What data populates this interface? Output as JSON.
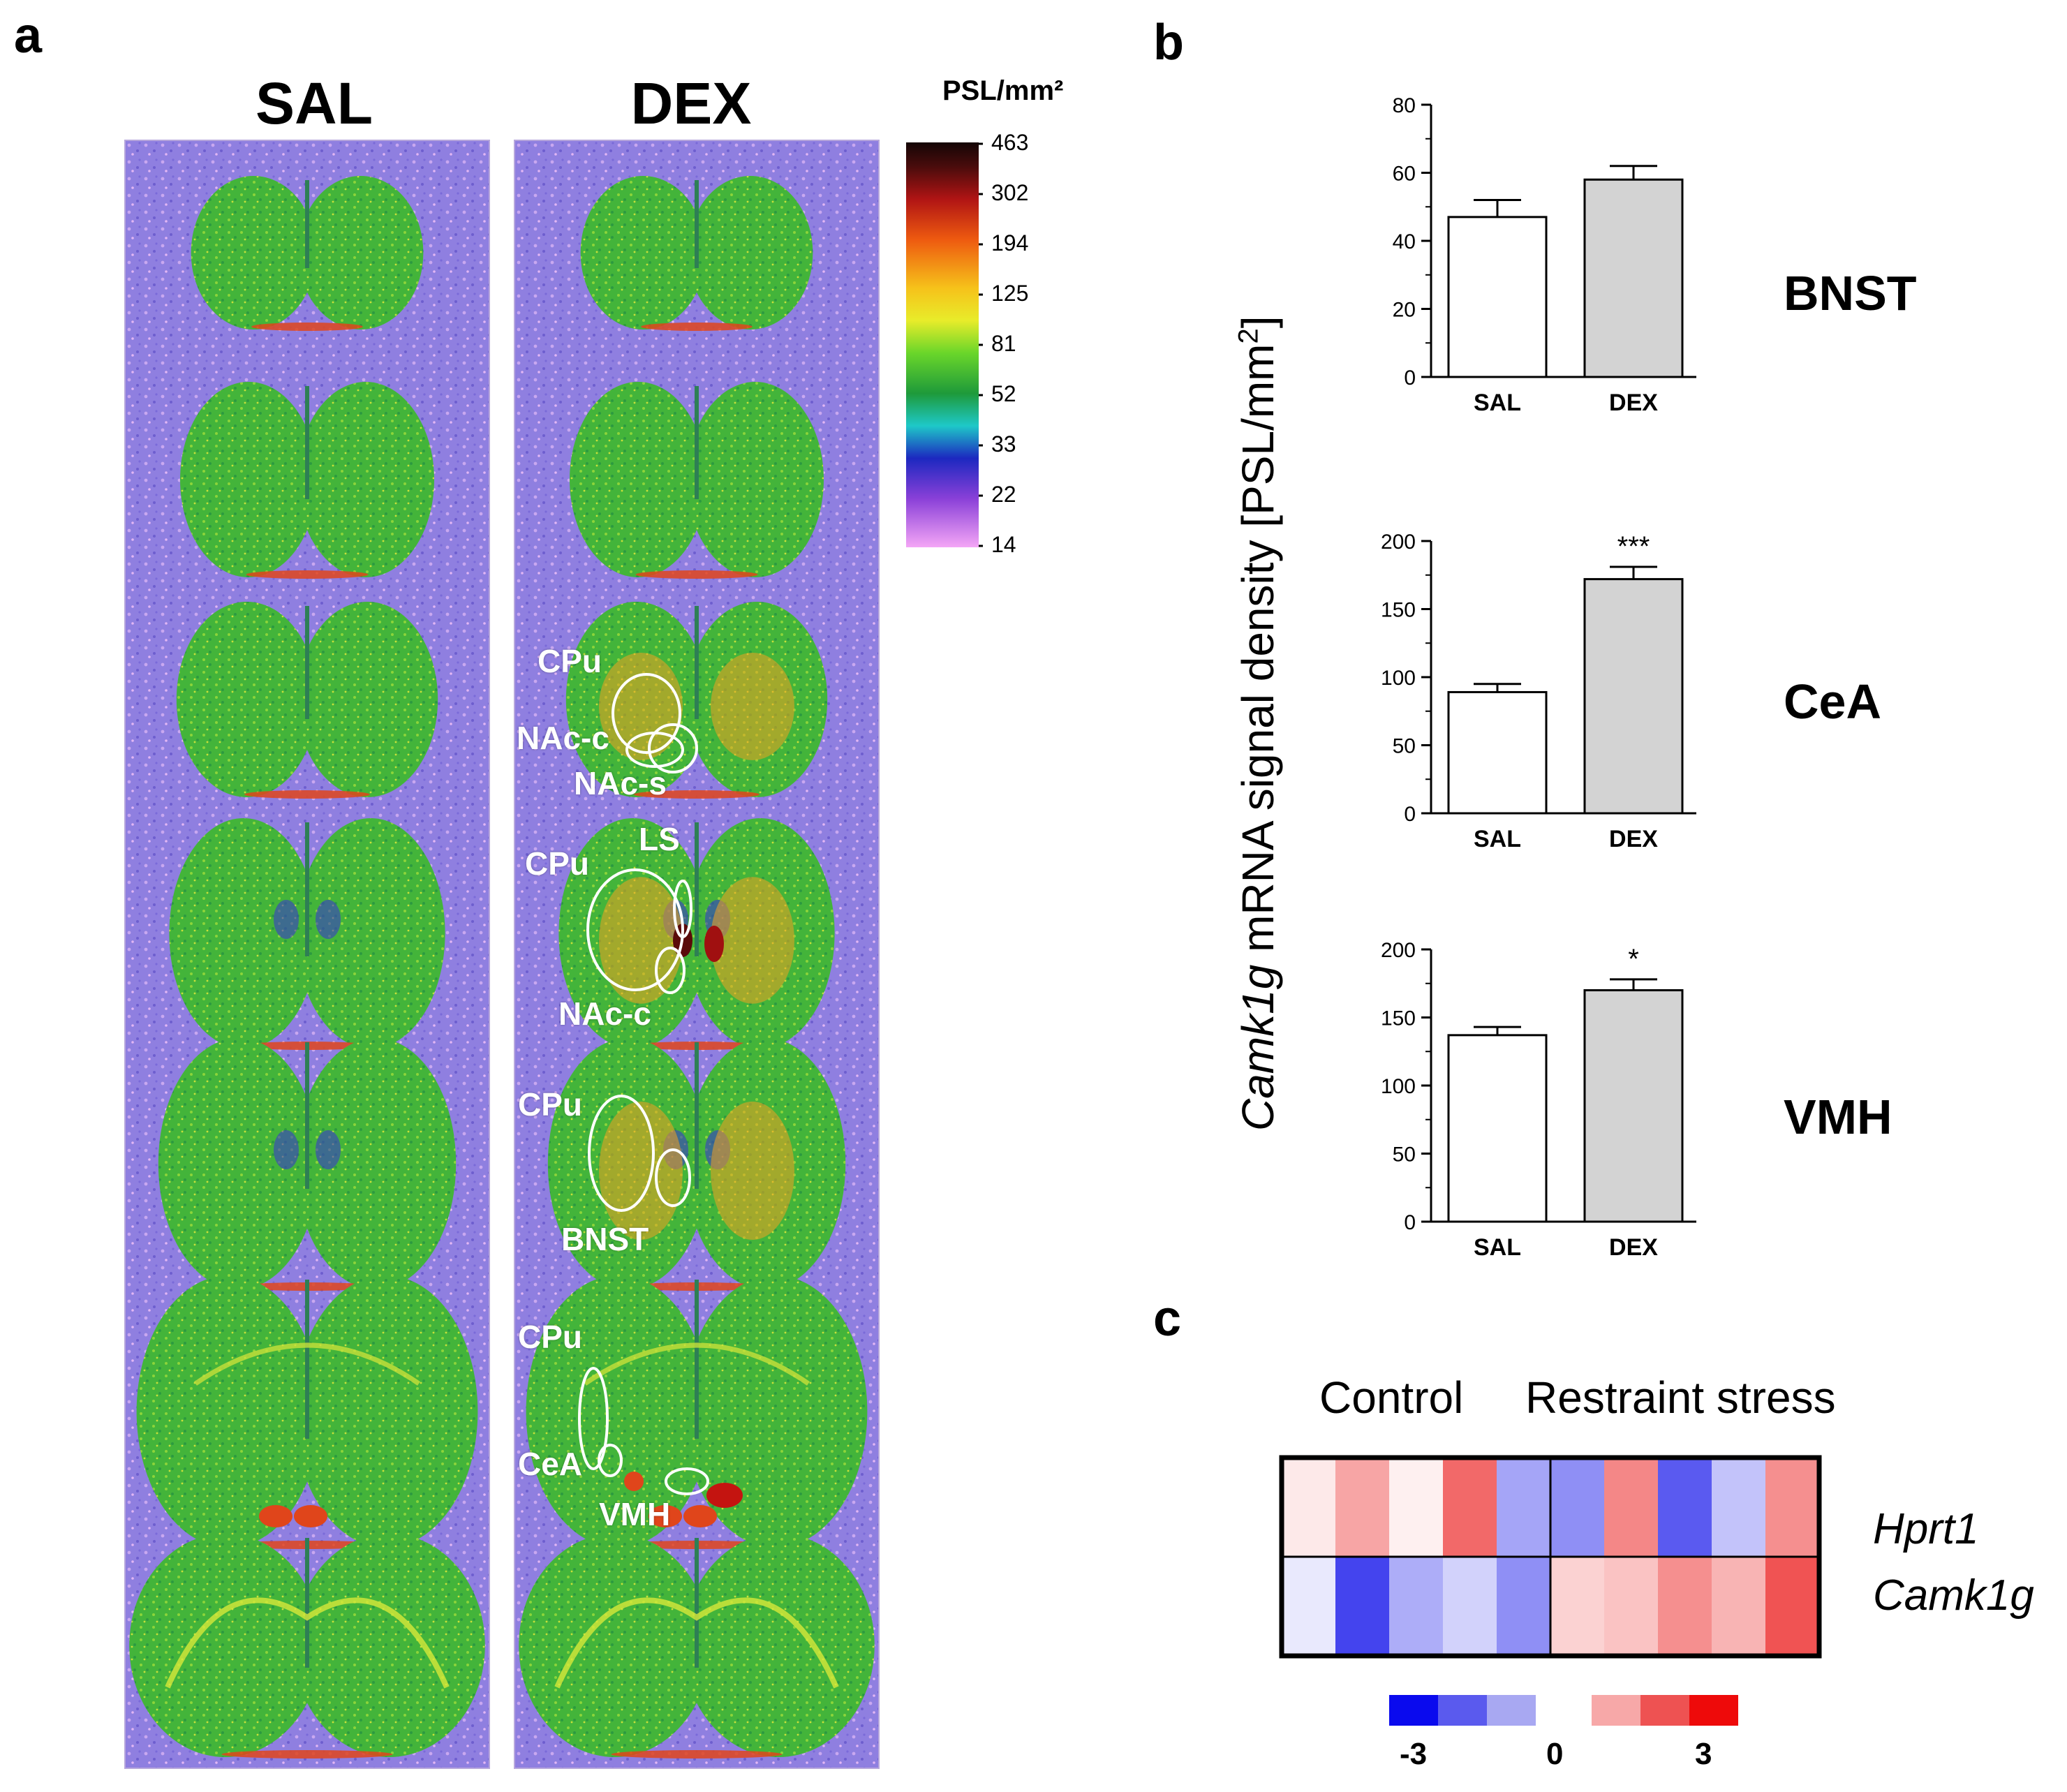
{
  "panel_a": {
    "letter": "a",
    "col_sal": "SAL",
    "col_dex": "DEX",
    "scale_title": "PSL/mm²",
    "scale_ticks": [
      "463",
      "302",
      "194",
      "125",
      "81",
      "52",
      "33",
      "22",
      "14"
    ],
    "labels": {
      "cpu1": "CPu",
      "nacc1": "NAc-c",
      "nacs": "NAc-s",
      "cpu2": "CPu",
      "ls": "LS",
      "nacc2": "NAc-c",
      "cpu3": "CPu",
      "bnst": "BNST",
      "cpu4": "CPu",
      "cea": "CeA",
      "vmh": "VMH"
    },
    "colors": {
      "background": "#8f7fe0",
      "tissue": "#43b43a",
      "hot": "#e0451b"
    }
  },
  "panel_b": {
    "letter": "b",
    "ylabel_italic": "Camk1g",
    "ylabel_rest": " mRNA signal density [PSL/mm",
    "ylabel_sup": "2",
    "ylabel_end": "]"
  },
  "chart_data": [
    {
      "type": "bar",
      "region": "BNST",
      "categories": [
        "SAL",
        "DEX"
      ],
      "values": [
        47,
        58
      ],
      "errors": [
        5,
        4
      ],
      "ylim": [
        0,
        80
      ],
      "yticks": [
        "0",
        "20",
        "40",
        "60",
        "80"
      ],
      "significance": [
        "",
        ""
      ],
      "colors": [
        "#ffffff",
        "#d3d3d3"
      ]
    },
    {
      "type": "bar",
      "region": "CeA",
      "categories": [
        "SAL",
        "DEX"
      ],
      "values": [
        89,
        172
      ],
      "errors": [
        6,
        9
      ],
      "ylim": [
        0,
        200
      ],
      "yticks": [
        "0",
        "50",
        "100",
        "150",
        "200"
      ],
      "significance": [
        "",
        "***"
      ],
      "colors": [
        "#ffffff",
        "#d3d3d3"
      ]
    },
    {
      "type": "bar",
      "region": "VMH",
      "categories": [
        "SAL",
        "DEX"
      ],
      "values": [
        137,
        170
      ],
      "errors": [
        6,
        8
      ],
      "ylim": [
        0,
        200
      ],
      "yticks": [
        "0",
        "50",
        "100",
        "150",
        "200"
      ],
      "significance": [
        "",
        "*"
      ],
      "colors": [
        "#ffffff",
        "#d3d3d3"
      ]
    }
  ],
  "panel_c": {
    "letter": "c",
    "group_control": "Control",
    "group_stress": "Restraint stress",
    "genes": [
      "Hprt1",
      "Camk1g"
    ],
    "heatmap": {
      "type": "heatmap",
      "rows": [
        "Hprt1",
        "Camk1g"
      ],
      "values": [
        [
          0.3,
          1.2,
          0.2,
          2.0,
          -1.2,
          -1.5,
          1.6,
          -2.2,
          -0.8,
          1.5
        ],
        [
          -0.3,
          -2.5,
          -1.1,
          -0.6,
          -1.5,
          0.6,
          0.8,
          1.5,
          1.0,
          2.3
        ]
      ],
      "vmin": -3,
      "vmax": 3
    },
    "legend_ticks": [
      "-3",
      "0",
      "3"
    ],
    "legend_colors": [
      "#0a0aee",
      "#5a5aee",
      "#a8a8f2",
      "#f7a8a8",
      "#ee5252",
      "#ee0a0a"
    ]
  }
}
